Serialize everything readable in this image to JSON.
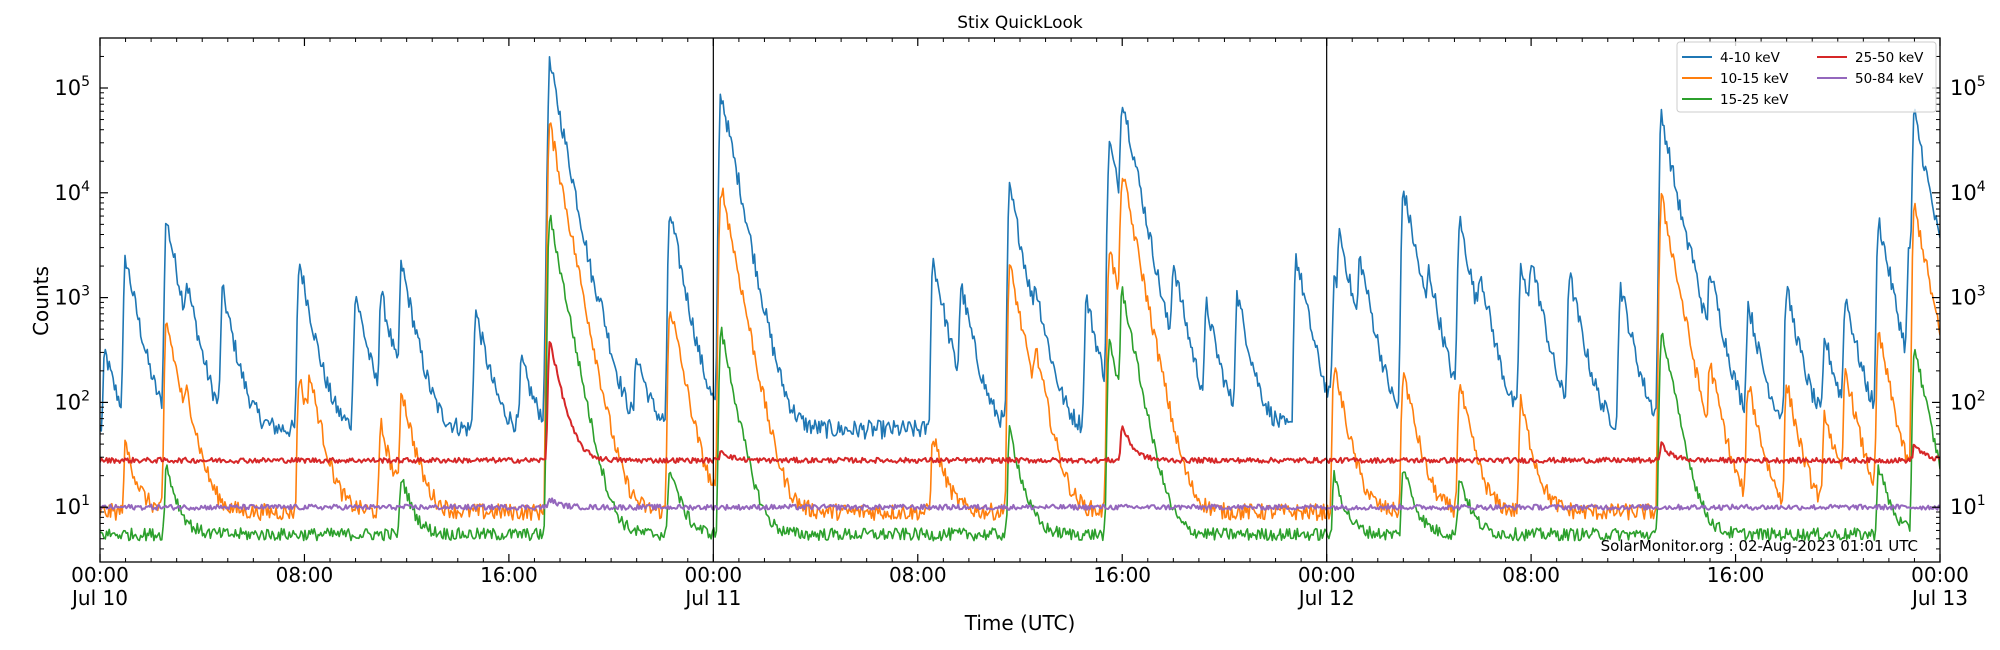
{
  "chart_data": {
    "type": "line",
    "title": "Stix QuickLook",
    "xlabel": "Time (UTC)",
    "ylabel": "Counts",
    "yscale": "log",
    "ylim": [
      3,
      300000
    ],
    "xlim_hours": [
      0,
      72
    ],
    "grid": false,
    "legend_position": "top-right",
    "credit": "SolarMonitor.org : 02-Aug-2023 01:01 UTC",
    "x_ticks": [
      {
        "hour": 0,
        "time": "00:00",
        "date": "Jul 10"
      },
      {
        "hour": 8,
        "time": "08:00",
        "date": ""
      },
      {
        "hour": 16,
        "time": "16:00",
        "date": ""
      },
      {
        "hour": 24,
        "time": "00:00",
        "date": "Jul 11"
      },
      {
        "hour": 32,
        "time": "08:00",
        "date": ""
      },
      {
        "hour": 40,
        "time": "16:00",
        "date": ""
      },
      {
        "hour": 48,
        "time": "00:00",
        "date": "Jul 12"
      },
      {
        "hour": 56,
        "time": "08:00",
        "date": ""
      },
      {
        "hour": 64,
        "time": "16:00",
        "date": ""
      },
      {
        "hour": 72,
        "time": "00:00",
        "date": "Jul 13"
      }
    ],
    "day_boundaries_hours": [
      24,
      48
    ],
    "y_ticks": [
      {
        "value": 10,
        "base": "10",
        "exp": "1"
      },
      {
        "value": 100,
        "base": "10",
        "exp": "2"
      },
      {
        "value": 1000,
        "base": "10",
        "exp": "3"
      },
      {
        "value": 10000,
        "base": "10",
        "exp": "4"
      },
      {
        "value": 100000,
        "base": "10",
        "exp": "5"
      }
    ],
    "series": [
      {
        "name": "4-10 keV",
        "color": "#1f77b4",
        "baseline": 55,
        "peaks": [
          [
            0.2,
            300
          ],
          [
            1.0,
            2400
          ],
          [
            2.6,
            5500
          ],
          [
            3.4,
            850
          ],
          [
            4.8,
            1150
          ],
          [
            7.8,
            2200
          ],
          [
            10.0,
            1100
          ],
          [
            11.0,
            1050
          ],
          [
            11.8,
            2000
          ],
          [
            14.7,
            750
          ],
          [
            16.5,
            250
          ],
          [
            17.5,
            1100
          ],
          [
            17.6,
            170000
          ],
          [
            18.5,
            400
          ],
          [
            19.5,
            400
          ],
          [
            21.0,
            280
          ],
          [
            22.3,
            6500
          ],
          [
            24.3,
            90000
          ],
          [
            25.0,
            500
          ],
          [
            32.6,
            2300
          ],
          [
            33.7,
            1200
          ],
          [
            35.6,
            11000
          ],
          [
            36.6,
            700
          ],
          [
            38.6,
            1000
          ],
          [
            39.5,
            30000
          ],
          [
            40.0,
            75000
          ],
          [
            42.0,
            1900
          ],
          [
            43.3,
            800
          ],
          [
            44.5,
            1050
          ],
          [
            46.8,
            2500
          ],
          [
            48.3,
            1400
          ],
          [
            48.5,
            3500
          ],
          [
            49.3,
            2000
          ],
          [
            51.0,
            11000
          ],
          [
            52.0,
            1200
          ],
          [
            53.2,
            5500
          ],
          [
            54.0,
            1250
          ],
          [
            55.6,
            1900
          ],
          [
            56.0,
            1800
          ],
          [
            57.5,
            1650
          ],
          [
            59.5,
            1300
          ],
          [
            61.1,
            55000
          ],
          [
            62.2,
            1000
          ],
          [
            63.0,
            1500
          ],
          [
            64.5,
            850
          ],
          [
            66.0,
            1200
          ],
          [
            67.5,
            400
          ],
          [
            68.3,
            1000
          ],
          [
            69.6,
            5500
          ],
          [
            70.8,
            3000
          ],
          [
            71.0,
            55000
          ]
        ]
      },
      {
        "name": "10-15 keV",
        "color": "#ff7f0e",
        "baseline": 9,
        "peaks": [
          [
            1.0,
            40
          ],
          [
            2.6,
            600
          ],
          [
            3.4,
            70
          ],
          [
            7.8,
            180
          ],
          [
            8.2,
            130
          ],
          [
            11.0,
            60
          ],
          [
            11.8,
            130
          ],
          [
            17.6,
            45000
          ],
          [
            22.3,
            850
          ],
          [
            24.3,
            12000
          ],
          [
            32.6,
            50
          ],
          [
            35.6,
            2000
          ],
          [
            36.6,
            220
          ],
          [
            39.5,
            3000
          ],
          [
            40.0,
            15000
          ],
          [
            48.3,
            220
          ],
          [
            51.0,
            200
          ],
          [
            53.2,
            150
          ],
          [
            55.6,
            100
          ],
          [
            61.1,
            9000
          ],
          [
            63.0,
            200
          ],
          [
            64.5,
            150
          ],
          [
            66.0,
            150
          ],
          [
            67.5,
            80
          ],
          [
            68.3,
            200
          ],
          [
            69.6,
            450
          ],
          [
            71.0,
            7500
          ]
        ]
      },
      {
        "name": "15-25 keV",
        "color": "#2ca02c",
        "baseline": 5.5,
        "peaks": [
          [
            2.6,
            25
          ],
          [
            11.8,
            20
          ],
          [
            17.6,
            6000
          ],
          [
            22.3,
            25
          ],
          [
            24.3,
            500
          ],
          [
            35.6,
            55
          ],
          [
            39.5,
            400
          ],
          [
            40.0,
            1100
          ],
          [
            48.3,
            20
          ],
          [
            51.0,
            25
          ],
          [
            53.2,
            20
          ],
          [
            61.1,
            500
          ],
          [
            69.6,
            25
          ],
          [
            71.0,
            350
          ]
        ]
      },
      {
        "name": "25-50 keV",
        "color": "#d62728",
        "baseline": 28,
        "peaks": [
          [
            17.6,
            400
          ],
          [
            24.3,
            35
          ],
          [
            40.0,
            60
          ],
          [
            61.1,
            40
          ],
          [
            71.0,
            40
          ]
        ]
      },
      {
        "name": "50-84 keV",
        "color": "#9467bd",
        "baseline": 10,
        "peaks": [
          [
            17.6,
            12
          ]
        ]
      }
    ]
  }
}
